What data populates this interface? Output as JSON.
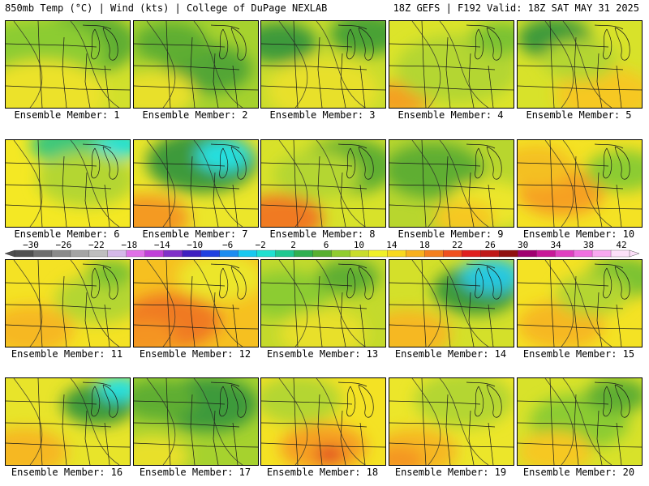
{
  "header": {
    "left": "850mb Temp (°C) | Wind (kts) | College of DuPage NEXLAB",
    "right": "18Z GEFS | F192 Valid: 18Z SAT MAY 31 2025"
  },
  "members": [
    {
      "label": "Ensemble Member: 1",
      "base": "#d2e02c",
      "blobs": [
        [
          "#5eae32",
          0.62,
          0.25,
          0.45
        ],
        [
          "#8ccc30",
          0.25,
          0.4,
          0.55
        ],
        [
          "#ece22a",
          0.3,
          0.85,
          0.5
        ]
      ]
    },
    {
      "label": "Ensemble Member: 2",
      "base": "#a6d22e",
      "blobs": [
        [
          "#52a636",
          0.6,
          0.55,
          0.35
        ],
        [
          "#5eae32",
          0.3,
          0.25,
          0.3
        ],
        [
          "#e8e02a",
          0.15,
          0.85,
          0.35
        ]
      ]
    },
    {
      "label": "Ensemble Member: 3",
      "base": "#c8dc2c",
      "blobs": [
        [
          "#3e9a3a",
          0.15,
          0.25,
          0.3
        ],
        [
          "#4aa236",
          0.85,
          0.15,
          0.3
        ],
        [
          "#e8e02a",
          0.5,
          0.8,
          0.45
        ]
      ]
    },
    {
      "label": "Ensemble Member: 4",
      "base": "#dce42a",
      "blobs": [
        [
          "#f4a020",
          0.08,
          0.9,
          0.25
        ],
        [
          "#b4d630",
          0.55,
          0.55,
          0.5
        ],
        [
          "#7cc232",
          0.9,
          0.2,
          0.25
        ]
      ]
    },
    {
      "label": "Ensemble Member: 5",
      "base": "#d8e22a",
      "blobs": [
        [
          "#3e9a3a",
          0.3,
          0.2,
          0.3
        ],
        [
          "#f6c820",
          0.7,
          0.85,
          0.4
        ],
        [
          "#b4d630",
          0.5,
          0.45,
          0.3
        ]
      ]
    },
    {
      "label": "Ensemble Member: 6",
      "base": "#f4e824",
      "blobs": [
        [
          "#3ec87a",
          0.5,
          0.05,
          0.3
        ],
        [
          "#1ee0d4",
          0.92,
          0.05,
          0.2
        ],
        [
          "#b4d630",
          0.65,
          0.45,
          0.4
        ]
      ]
    },
    {
      "label": "Ensemble Member: 7",
      "base": "#ece62a",
      "blobs": [
        [
          "#3e9a3a",
          0.55,
          0.25,
          0.45
        ],
        [
          "#28e0e0",
          0.72,
          0.18,
          0.22
        ],
        [
          "#f49a20",
          0.1,
          0.9,
          0.35
        ]
      ]
    },
    {
      "label": "Ensemble Member: 8",
      "base": "#d8e22a",
      "blobs": [
        [
          "#f07a20",
          0.15,
          0.9,
          0.35
        ],
        [
          "#5eae32",
          0.7,
          0.3,
          0.4
        ],
        [
          "#b4d630",
          0.45,
          0.4,
          0.35
        ]
      ]
    },
    {
      "label": "Ensemble Member: 9",
      "base": "#b8d62e",
      "blobs": [
        [
          "#5eae32",
          0.35,
          0.35,
          0.4
        ],
        [
          "#ece62a",
          0.8,
          0.75,
          0.35
        ],
        [
          "#f6c820",
          0.6,
          0.9,
          0.25
        ]
      ]
    },
    {
      "label": "Ensemble Member: 10",
      "base": "#f4e224",
      "blobs": [
        [
          "#f6a020",
          0.35,
          0.6,
          0.35
        ],
        [
          "#8ccc30",
          0.85,
          0.35,
          0.3
        ],
        [
          "#f4c020",
          0.15,
          0.3,
          0.3
        ]
      ]
    },
    {
      "label": "Ensemble Member: 11",
      "base": "#f4e224",
      "blobs": [
        [
          "#b4d630",
          0.75,
          0.45,
          0.35
        ],
        [
          "#f6b820",
          0.2,
          0.8,
          0.35
        ],
        [
          "#7cc232",
          0.85,
          0.15,
          0.2
        ]
      ]
    },
    {
      "label": "Ensemble Member: 12",
      "base": "#f6c020",
      "blobs": [
        [
          "#f07a20",
          0.3,
          0.7,
          0.4
        ],
        [
          "#ece62a",
          0.7,
          0.2,
          0.35
        ],
        [
          "#f49420",
          0.1,
          0.9,
          0.25
        ]
      ]
    },
    {
      "label": "Ensemble Member: 13",
      "base": "#c4da2c",
      "blobs": [
        [
          "#8ccc30",
          0.2,
          0.4,
          0.35
        ],
        [
          "#5eae32",
          0.7,
          0.2,
          0.25
        ],
        [
          "#e8e02a",
          0.5,
          0.85,
          0.35
        ]
      ]
    },
    {
      "label": "Ensemble Member: 14",
      "base": "#d4e02a",
      "blobs": [
        [
          "#3e9a3a",
          0.7,
          0.35,
          0.35
        ],
        [
          "#28c8e0",
          0.82,
          0.18,
          0.25
        ],
        [
          "#f6b820",
          0.15,
          0.85,
          0.35
        ]
      ]
    },
    {
      "label": "Ensemble Member: 15",
      "base": "#f4e224",
      "blobs": [
        [
          "#7cc232",
          0.85,
          0.2,
          0.3
        ],
        [
          "#f6b820",
          0.35,
          0.75,
          0.35
        ],
        [
          "#b4d630",
          0.6,
          0.4,
          0.3
        ]
      ]
    },
    {
      "label": "Ensemble Member: 16",
      "base": "#e8e42a",
      "blobs": [
        [
          "#3e9a3a",
          0.75,
          0.3,
          0.3
        ],
        [
          "#28e0e0",
          0.92,
          0.12,
          0.18
        ],
        [
          "#f6b820",
          0.15,
          0.85,
          0.35
        ]
      ]
    },
    {
      "label": "Ensemble Member: 17",
      "base": "#a6d22e",
      "blobs": [
        [
          "#3e9a3a",
          0.6,
          0.3,
          0.4
        ],
        [
          "#5eae32",
          0.2,
          0.25,
          0.3
        ],
        [
          "#e8e02a",
          0.15,
          0.9,
          0.3
        ]
      ]
    },
    {
      "label": "Ensemble Member: 18",
      "base": "#f4e224",
      "blobs": [
        [
          "#f6a020",
          0.5,
          0.8,
          0.35
        ],
        [
          "#e04020",
          0.55,
          0.88,
          0.12
        ],
        [
          "#b4d630",
          0.3,
          0.25,
          0.35
        ]
      ]
    },
    {
      "label": "Ensemble Member: 19",
      "base": "#ece62a",
      "blobs": [
        [
          "#b4d630",
          0.6,
          0.25,
          0.4
        ],
        [
          "#f6b820",
          0.2,
          0.85,
          0.35
        ],
        [
          "#f49420",
          0.08,
          0.95,
          0.2
        ]
      ]
    },
    {
      "label": "Ensemble Member: 20",
      "base": "#d8e22a",
      "blobs": [
        [
          "#8ccc30",
          0.5,
          0.5,
          0.4
        ],
        [
          "#5eae32",
          0.8,
          0.2,
          0.25
        ],
        [
          "#f6c820",
          0.3,
          0.85,
          0.3
        ]
      ]
    }
  ],
  "colorbar": {
    "labels": [
      "−30",
      "−26",
      "−22",
      "−18",
      "−14",
      "−10",
      "−6",
      "−2",
      "2",
      "6",
      "10",
      "14",
      "18",
      "22",
      "26",
      "30",
      "34",
      "38",
      "42"
    ],
    "colors": [
      "#505050",
      "#6e6e6e",
      "#8a8a8a",
      "#a4a4a4",
      "#bebebe",
      "#d4b8e8",
      "#e070e8",
      "#c040d8",
      "#8030c8",
      "#4020c0",
      "#2040e0",
      "#1c8cf0",
      "#18c8f0",
      "#20e0d0",
      "#20c890",
      "#30b050",
      "#58b030",
      "#90cc30",
      "#c8dc2c",
      "#f0f028",
      "#f8d820",
      "#f8b020",
      "#f48020",
      "#f05020",
      "#e02020",
      "#c01818",
      "#901010",
      "#a00070",
      "#c81898",
      "#e040c0",
      "#f070e0",
      "#f8a8f0",
      "#fce0f8"
    ]
  }
}
